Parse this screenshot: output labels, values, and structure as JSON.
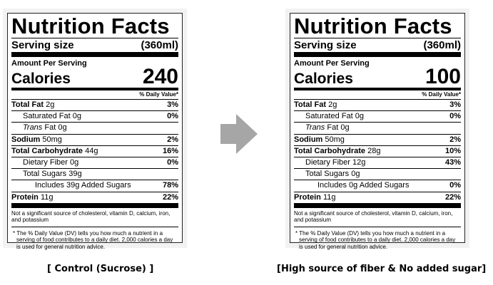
{
  "labels": [
    {
      "title": "Nutrition Facts",
      "serving_label": "Serving size",
      "serving_value": "(360ml)",
      "amount_per_serving": "Amount Per Serving",
      "calories_label": "Calories",
      "calories_value": "240",
      "dv_header": "% Daily Value*",
      "rows": [
        {
          "name": "Total Fat",
          "amount": "2g",
          "dv": "3%"
        },
        {
          "name": "Saturated Fat",
          "amount": "0g",
          "dv": "0%"
        },
        {
          "name_italic": "Trans",
          "name": "Fat",
          "amount": "0g",
          "dv": ""
        },
        {
          "name": "Sodium",
          "amount": "50mg",
          "dv": "2%"
        },
        {
          "name": "Total Carbohydrate",
          "amount": "44g",
          "dv": "16%"
        },
        {
          "name": "Dietary Fiber",
          "amount": "0g",
          "dv": "0%"
        },
        {
          "name": "Total Sugars",
          "amount": "39g",
          "dv": ""
        },
        {
          "name_pre": "Includes",
          "amount": "39g",
          "name": "Added Sugars",
          "dv": "78%"
        },
        {
          "name": "Protein",
          "amount": "11g",
          "dv": "22%"
        }
      ],
      "note1": "Not a significant source of cholesterol, vitamin D, calcium, iron, and potassium",
      "note2": "* The % Daily Value (DV) tells you how much a nutrient in a serving of food contributes to a daily diet. 2,000 calories a day is used for general nutrition advice."
    },
    {
      "title": "Nutrition Facts",
      "serving_label": "Serving size",
      "serving_value": "(360ml)",
      "amount_per_serving": "Amount Per Serving",
      "calories_label": "Calories",
      "calories_value": "100",
      "dv_header": "% Daily Value*",
      "rows": [
        {
          "name": "Total Fat",
          "amount": "2g",
          "dv": "3%"
        },
        {
          "name": "Saturated Fat",
          "amount": "0g",
          "dv": "0%"
        },
        {
          "name_italic": "Trans",
          "name": "Fat",
          "amount": "0g",
          "dv": ""
        },
        {
          "name": "Sodium",
          "amount": "50mg",
          "dv": "2%"
        },
        {
          "name": "Total Carbohydrate",
          "amount": "28g",
          "dv": "10%"
        },
        {
          "name": "Dietary Fiber",
          "amount": "12g",
          "dv": "43%"
        },
        {
          "name": "Total Sugars",
          "amount": "0g",
          "dv": ""
        },
        {
          "name_pre": "Includes",
          "amount": "0g",
          "name": "Added Sugars",
          "dv": "0%"
        },
        {
          "name": "Protein",
          "amount": "11g",
          "dv": "22%"
        }
      ],
      "note1": "Not a significant source of cholesterol, vitamin D, calcium, iron, and potassium",
      "note2": "* The % Daily Value (DV) tells you how much a nutrient in a serving of food contributes to a daily diet. 2,000 calories a day is used for general nutrition advice."
    }
  ],
  "captions": {
    "left": "[ Control (Sucrose) ]",
    "right": "[High source of fiber & No added sugar]"
  },
  "arrow": {
    "icon": "right-arrow-icon",
    "color": "#a6a6a6"
  }
}
